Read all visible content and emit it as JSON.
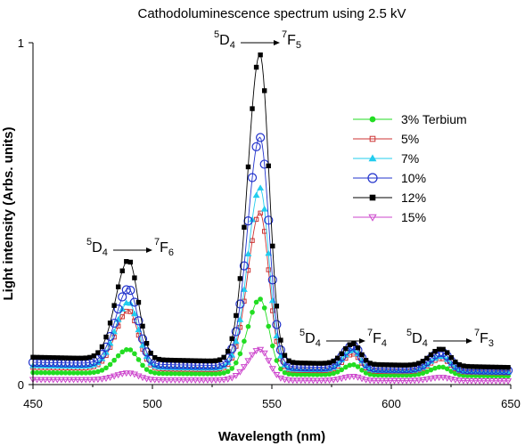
{
  "chart_data": {
    "type": "scatter",
    "title": "Cathodoluminescence spectrum using  2.5 kV",
    "xlabel": "Wavelength (nm)",
    "ylabel": "Light intensity (Arbs. units)",
    "xlim": [
      450,
      650
    ],
    "ylim": [
      0,
      1
    ],
    "xticks": [
      "450",
      "500",
      "550",
      "600",
      "650"
    ],
    "yticks": [
      "0",
      "1"
    ],
    "grid": false,
    "legend_position": "right",
    "annotations": [
      {
        "upper": "5",
        "level": "D",
        "sub": "4",
        "upper2": "7",
        "level2": "F",
        "sub2": "6",
        "x": 490,
        "y": 0.4
      },
      {
        "upper": "5",
        "level": "D",
        "sub": "4",
        "upper2": "7",
        "level2": "F",
        "sub2": "5",
        "x": 545,
        "y": 1.0
      },
      {
        "upper": "5",
        "level": "D",
        "sub": "4",
        "upper2": "7",
        "level2": "F",
        "sub2": "4",
        "x": 584,
        "y": 0.17
      },
      {
        "upper": "5",
        "level": "D",
        "sub": "4",
        "upper2": "7",
        "level2": "F",
        "sub2": "3",
        "x": 622,
        "y": 0.17
      }
    ],
    "peaks": [
      {
        "center": 490,
        "width": 4.0
      },
      {
        "center": 545,
        "width": 3.8
      },
      {
        "center": 584,
        "width": 3.0
      },
      {
        "center": 621,
        "width": 3.5
      }
    ],
    "series": [
      {
        "name": "3% Terbium",
        "color": "#22dd22",
        "marker": "filled-circle",
        "baseline": 0.035,
        "baseline_slope": -5e-05,
        "peaks": [
          0.07,
          0.22,
          0.03,
          0.025
        ]
      },
      {
        "name": "5%",
        "color": "#cc3333",
        "marker": "open-square",
        "baseline": 0.05,
        "baseline_slope": -8e-05,
        "peaks": [
          0.17,
          0.46,
          0.05,
          0.04
        ]
      },
      {
        "name": "7%",
        "color": "#22ccee",
        "marker": "filled-triangle",
        "baseline": 0.055,
        "baseline_slope": -0.0001,
        "peaks": [
          0.19,
          0.53,
          0.06,
          0.045
        ]
      },
      {
        "name": "10%",
        "color": "#2233cc",
        "marker": "open-circle",
        "baseline": 0.065,
        "baseline_slope": -0.00012,
        "peaks": [
          0.22,
          0.67,
          0.065,
          0.05
        ]
      },
      {
        "name": "12%",
        "color": "#000000",
        "marker": "filled-square",
        "baseline": 0.08,
        "baseline_slope": -0.00015,
        "peaks": [
          0.29,
          0.9,
          0.06,
          0.05
        ]
      },
      {
        "name": "15%",
        "color": "#cc44cc",
        "marker": "open-triangle-down",
        "baseline": 0.015,
        "baseline_slope": -2e-05,
        "peaks": [
          0.02,
          0.09,
          0.012,
          0.01
        ]
      }
    ]
  }
}
